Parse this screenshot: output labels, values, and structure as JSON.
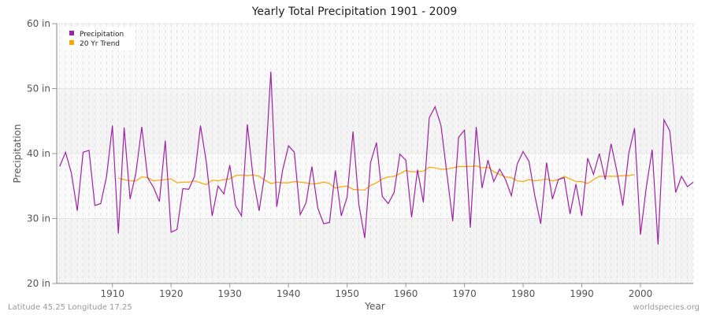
{
  "chart_data": {
    "type": "line",
    "title": "Yearly Total Precipitation 1901 - 2009",
    "xlabel": "Year",
    "ylabel": "Precipitation",
    "xlim": [
      1900.5,
      2009
    ],
    "ylim": [
      20,
      60
    ],
    "x_ticks": [
      1910,
      1920,
      1930,
      1940,
      1950,
      1960,
      1970,
      1980,
      1990,
      2000
    ],
    "y_ticks": [
      20,
      30,
      40,
      50,
      60
    ],
    "y_tick_labels": [
      "20 in",
      "30 in",
      "40 in",
      "50 in",
      "60 in"
    ],
    "grid": true,
    "legend_placement": "top-left",
    "series": [
      {
        "name": "Precipitation",
        "color": "#a020a8",
        "x_start": 1901,
        "values": [
          38,
          40.2,
          37,
          31.2,
          40.2,
          40.5,
          32,
          32.3,
          36.5,
          44.3,
          27.7,
          44,
          33,
          37,
          44.1,
          36.3,
          34.8,
          32.6,
          42,
          27.9,
          28.3,
          34.6,
          34.5,
          36.5,
          44.3,
          38.7,
          30.4,
          35,
          33.8,
          38.2,
          32,
          30.4,
          44.5,
          36.1,
          31.2,
          37.1,
          52.6,
          31.8,
          37.4,
          41.2,
          40.2,
          30.6,
          32.4,
          38,
          31.6,
          29.2,
          29.4,
          37.4,
          30.4,
          33.3,
          43.4,
          32.2,
          27,
          38.6,
          41.7,
          33.4,
          32.3,
          34,
          39.9,
          39,
          30.2,
          37.5,
          32.5,
          45.5,
          47.2,
          44.3,
          37,
          29.6,
          42.5,
          43.6,
          28.6,
          44.1,
          34.7,
          39,
          35.7,
          37.6,
          36,
          33.5,
          38.4,
          40.3,
          38.8,
          33.5,
          29.2,
          38.6,
          33,
          36,
          36.3,
          30.7,
          35.3,
          30.4,
          39.3,
          36.8,
          40,
          36,
          41.5,
          37.2,
          32,
          40,
          43.9,
          27.5,
          34.8,
          40.6,
          26,
          45.2,
          43.5,
          34,
          36.5,
          34.9,
          35.6
        ]
      },
      {
        "name": "20 Yr Trend",
        "color": "#ffa500",
        "x_start": 1911,
        "values": [
          36.2,
          36,
          35.8,
          35.8,
          36.4,
          36.3,
          35.8,
          35.9,
          36,
          36.1,
          35.5,
          35.6,
          35.6,
          35.8,
          35.5,
          35.2,
          35.9,
          35.8,
          36,
          36.1,
          36.6,
          36.7,
          36.6,
          36.7,
          36.5,
          35.9,
          35.4,
          35.6,
          35.5,
          35.5,
          35.7,
          35.6,
          35.5,
          35.3,
          35.4,
          35.6,
          35.4,
          34.7,
          34.9,
          35,
          34.5,
          34.4,
          34.4,
          35.1,
          35.5,
          36.1,
          36.4,
          36.5,
          36.9,
          37.4,
          37.2,
          37.2,
          37.3,
          37.9,
          37.8,
          37.6,
          37.6,
          37.8,
          38,
          38,
          38,
          38.1,
          37.8,
          37.9,
          37.2,
          36.8,
          36.4,
          36.3,
          35.8,
          35.7,
          36,
          35.8,
          35.9,
          36.1,
          35.8,
          36,
          36.5,
          36.1,
          35.7,
          35.7,
          35.4,
          36,
          36.5,
          36.5,
          36.5,
          36.5,
          36.6,
          36.6,
          36.8
        ]
      }
    ]
  },
  "footer": {
    "left": "Latitude 45.25 Longitude 17.25",
    "right": "worldspecies.org"
  }
}
